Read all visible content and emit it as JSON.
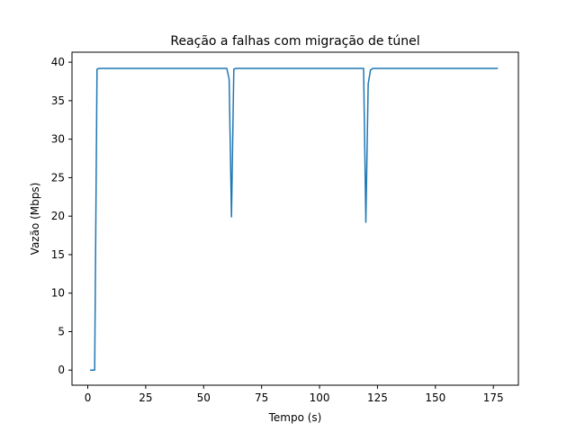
{
  "chart_data": {
    "type": "line",
    "title": "Reação a falhas com migração de túnel",
    "xlabel": "Tempo (s)",
    "ylabel": "Vazão (Mbps)",
    "xlim": [
      -6.8,
      185.8
    ],
    "ylim": [
      -1.96,
      41.3
    ],
    "xticks": [
      0,
      25,
      50,
      75,
      100,
      125,
      150,
      175
    ],
    "yticks": [
      0,
      5,
      10,
      15,
      20,
      25,
      30,
      35,
      40
    ],
    "grid": false,
    "series": [
      {
        "color": "#1f77b4",
        "x": [
          1,
          2,
          3,
          4,
          5,
          10,
          20,
          30,
          40,
          50,
          58,
          60,
          61,
          62,
          63,
          64,
          70,
          80,
          90,
          100,
          110,
          118,
          119,
          120,
          121,
          122,
          123,
          125,
          130,
          140,
          150,
          160,
          170,
          177
        ],
        "y": [
          0,
          0,
          0,
          39.1,
          39.2,
          39.2,
          39.2,
          39.2,
          39.2,
          39.2,
          39.2,
          39.2,
          37.8,
          19.9,
          39.1,
          39.2,
          39.2,
          39.2,
          39.2,
          39.2,
          39.2,
          39.2,
          39.2,
          19.2,
          37.2,
          39.0,
          39.2,
          39.2,
          39.2,
          39.2,
          39.2,
          39.2,
          39.2,
          39.2
        ]
      }
    ]
  }
}
